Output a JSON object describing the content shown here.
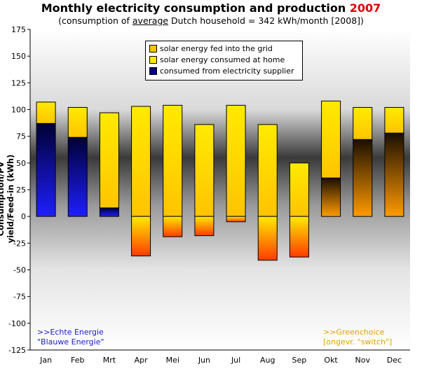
{
  "header": {
    "title": "Monthly electricity consumption and production ",
    "title_year": "2007",
    "subtitle_pre": "(consumption of ",
    "subtitle_under": "average",
    "subtitle_post": " Dutch household = 342 kWh/month [2008])"
  },
  "notes": {
    "left_line1": ">>Echte Energie",
    "left_line2": "\"Blauwe Energie\"",
    "right_line1": ">>Greenchoice",
    "right_line2": "[ongevr. \"switch\"]"
  },
  "colors": {
    "title_year": "#e00000",
    "blue_dark": "#000033",
    "blue_bright": "#1e1eff",
    "orange_dark": "#1a0e00",
    "orange_bright": "#ff9a00",
    "yellow_light": "#ffea00",
    "yellow_dark": "#ffc400",
    "feedin_top": "#ffea00",
    "feedin_bottom": "#ff3c00",
    "note_left": "#1a1ad0",
    "note_right": "#e8a000"
  },
  "chart_data": {
    "type": "bar",
    "title": "Monthly electricity consumption and production 2007",
    "subtitle": "(consumption of average Dutch household = 342 kWh/month [2008])",
    "ylabel": "Consumption/PV yield/Feed-in (kWh)",
    "xlabel": "",
    "ylim": [
      -125,
      175
    ],
    "yticks": [
      -125,
      -100,
      -75,
      -50,
      -25,
      0,
      25,
      50,
      75,
      100,
      125,
      150,
      175
    ],
    "categories": [
      "Jan",
      "Feb",
      "Mrt",
      "Apr",
      "Mei",
      "Jun",
      "Jul",
      "Aug",
      "Sep",
      "Okt",
      "Nov",
      "Dec"
    ],
    "series": [
      {
        "name": "solar energy fed into the grid",
        "values": [
          0,
          0,
          0,
          -37,
          -19,
          -18,
          -5,
          -41,
          -38,
          0,
          0,
          0
        ]
      },
      {
        "name": "solar energy consumed at home",
        "values": [
          20,
          28,
          89,
          103,
          104,
          86,
          104,
          86,
          50,
          72,
          30,
          24
        ]
      },
      {
        "name": "consumed from electricity supplier",
        "values": [
          87,
          74,
          8,
          0,
          0,
          0,
          0,
          0,
          0,
          36,
          72,
          78
        ]
      }
    ],
    "supplier": [
      "blue",
      "blue",
      "blue",
      "blue",
      "blue",
      "blue",
      "blue",
      "blue",
      "blue",
      "orange",
      "orange",
      "orange"
    ],
    "grid": false,
    "legend_position": "top-center"
  }
}
